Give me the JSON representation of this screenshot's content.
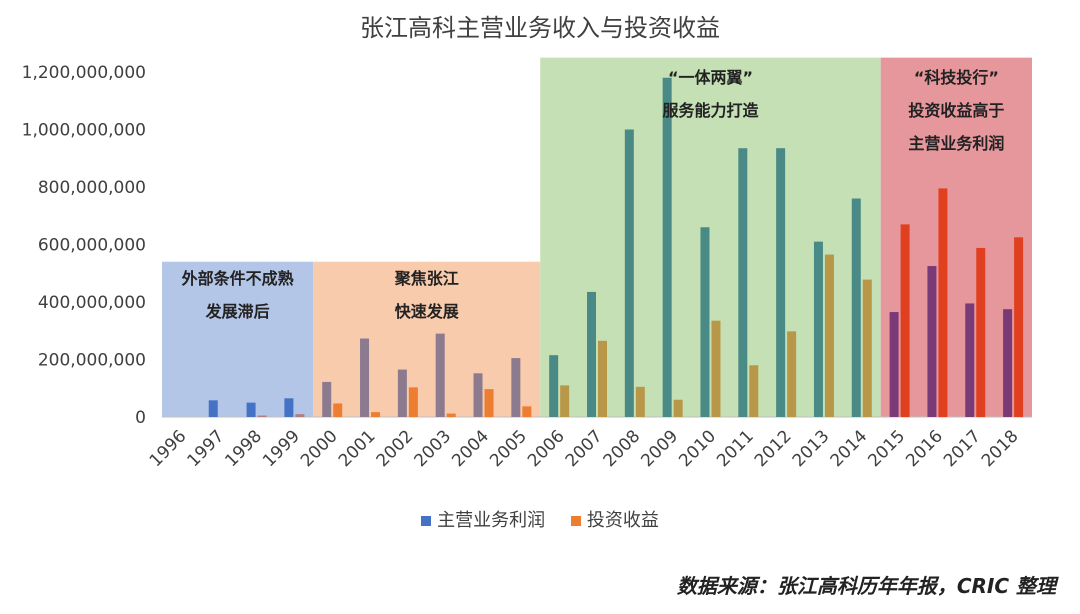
{
  "chart_data": {
    "type": "bar",
    "title": "张江高科主营业务收入与投资收益",
    "categories": [
      "1996",
      "1997",
      "1998",
      "1999",
      "2000",
      "2001",
      "2002",
      "2003",
      "2004",
      "2005",
      "2006",
      "2007",
      "2008",
      "2009",
      "2010",
      "2011",
      "2012",
      "2013",
      "2014",
      "2015",
      "2016",
      "2017",
      "2018"
    ],
    "series": [
      {
        "name": "主营业务利润",
        "color": "#4472C4",
        "values": [
          0,
          58000000,
          50000000,
          65000000,
          122000000,
          273000000,
          165000000,
          290000000,
          152000000,
          205000000,
          215000000,
          435000000,
          1000000000,
          1180000000,
          660000000,
          935000000,
          935000000,
          610000000,
          760000000,
          365000000,
          525000000,
          395000000,
          375000000
        ]
      },
      {
        "name": "投资收益",
        "color": "#ED7D31",
        "values": [
          0,
          0,
          5000000,
          10000000,
          47000000,
          17000000,
          103000000,
          12000000,
          97000000,
          37000000,
          110000000,
          265000000,
          105000000,
          60000000,
          335000000,
          180000000,
          298000000,
          565000000,
          478000000,
          670000000,
          795000000,
          588000000,
          625000000
        ]
      }
    ],
    "ylim": [
      0,
      1200000000
    ],
    "yticks": [
      "0",
      "200,000,000",
      "400,000,000",
      "600,000,000",
      "800,000,000",
      "1,000,000,000",
      "1,200,000,000"
    ],
    "legend_position": "bottom",
    "periods": [
      {
        "from": "1996",
        "to": "1999",
        "top": 540000000,
        "color": "#b4c6e7",
        "lines": [
          "外部条件不成熟",
          "发展滞后"
        ],
        "bar1_color": "#4472C4",
        "bar2_color": "#b08080"
      },
      {
        "from": "2000",
        "to": "2005",
        "top": 540000000,
        "color": "#f8cbad",
        "lines": [
          "聚焦张江",
          "快速发展"
        ],
        "bar1_color": "#8c7b8f",
        "bar2_color": "#ED7D31"
      },
      {
        "from": "2006",
        "to": "2014",
        "top": 1250000000,
        "color": "#c5e0b4",
        "lines": [
          "“一体两翼”",
          "服务能力打造"
        ],
        "bar1_color": "#4a8a86",
        "bar2_color": "#b89848"
      },
      {
        "from": "2015",
        "to": "2018",
        "top": 1250000000,
        "color": "#e6979b",
        "lines": [
          "“科技投行”",
          "投资收益高于",
          "主营业务利润"
        ],
        "bar1_color": "#7a3a78",
        "bar2_color": "#e04020"
      }
    ]
  },
  "source_note": "数据来源：张江高科历年年报，CRIC 整理"
}
